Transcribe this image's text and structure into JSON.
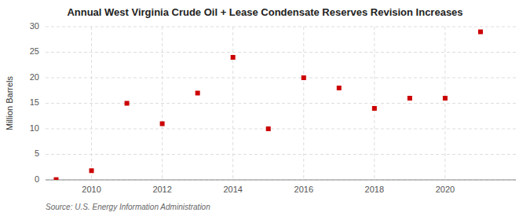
{
  "chart_data": {
    "type": "scatter",
    "title": "Annual West Virginia Crude Oil + Lease Condensate Reserves Revision Increases",
    "ylabel": "Million Barrels",
    "source": "Source: U.S. Energy Information Administration",
    "x": [
      2009,
      2010,
      2011,
      2012,
      2013,
      2014,
      2015,
      2016,
      2017,
      2018,
      2019,
      2020,
      2021
    ],
    "values": [
      0.05,
      1.8,
      15.0,
      11.0,
      17.0,
      24.0,
      10.0,
      20.0,
      18.0,
      14.0,
      16.0,
      16.0,
      29.0
    ],
    "color": "#cc0000",
    "marker": "square",
    "xlim": [
      2008.7,
      2022.0
    ],
    "xticks": [
      2010,
      2012,
      2014,
      2016,
      2018,
      2020
    ],
    "ylim": [
      0,
      30
    ],
    "yticks": [
      0,
      5,
      10,
      15,
      20,
      25,
      30
    ],
    "grid": true
  }
}
